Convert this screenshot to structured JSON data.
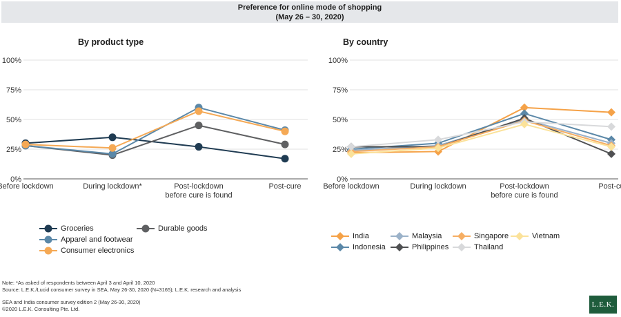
{
  "header": {
    "title": "Preference for online mode of shopping",
    "subtitle": "(May 26 – 30, 2020)"
  },
  "chart_data": [
    {
      "type": "line",
      "title": "By product type",
      "categories": [
        "Before lockdown",
        "During lockdown*",
        "Post-lockdown before cure is found",
        "Post-cure"
      ],
      "category_lines": [
        [
          "Before lockdown"
        ],
        [
          "During lockdown*"
        ],
        [
          "Post-lockdown",
          "before cure is found"
        ],
        [
          "Post-cure"
        ]
      ],
      "ylim": [
        0,
        100
      ],
      "yticks": [
        "0%",
        "25%",
        "50%",
        "75%",
        "100%"
      ],
      "series": [
        {
          "name": "Groceries",
          "color": "#1f3b52",
          "marker": "circle",
          "values": [
            30,
            35,
            27,
            17
          ]
        },
        {
          "name": "Durable goods",
          "color": "#5f6062",
          "marker": "circle",
          "values": [
            28,
            20,
            45,
            29
          ]
        },
        {
          "name": "Apparel and footwear",
          "color": "#5b88a8",
          "marker": "circle",
          "values": [
            28,
            21,
            60,
            41
          ]
        },
        {
          "name": "Consumer electronics",
          "color": "#f5a955",
          "marker": "circle",
          "values": [
            29,
            26,
            57,
            40
          ]
        }
      ]
    },
    {
      "type": "line",
      "title": "By country",
      "categories": [
        "Before lockdown",
        "During lockdown",
        "Post-lockdown before cure is found",
        "Post-cu"
      ],
      "category_lines": [
        [
          "Before lockdown"
        ],
        [
          "During lockdown"
        ],
        [
          "Post-lockdown",
          "before cure is found"
        ],
        [
          "Post-cu"
        ]
      ],
      "ylim": [
        0,
        100
      ],
      "yticks": [
        "0%",
        "25%",
        "50%",
        "75%",
        "100%"
      ],
      "series": [
        {
          "name": "India",
          "color": "#f5a248",
          "marker": "diamond",
          "values": [
            22,
            23,
            60,
            56
          ]
        },
        {
          "name": "Indonesia",
          "color": "#5b88a8",
          "marker": "diamond",
          "values": [
            25,
            30,
            55,
            33
          ]
        },
        {
          "name": "Malaysia",
          "color": "#9bb2c9",
          "marker": "diamond",
          "values": [
            24,
            28,
            50,
            30
          ]
        },
        {
          "name": "Philippines",
          "color": "#4f5052",
          "marker": "diamond",
          "values": [
            27,
            27,
            51,
            21
          ]
        },
        {
          "name": "Singapore",
          "color": "#f6ae63",
          "marker": "diamond",
          "values": [
            23,
            27,
            49,
            28
          ]
        },
        {
          "name": "Thailand",
          "color": "#d8d9db",
          "marker": "diamond",
          "values": [
            27,
            33,
            48,
            44
          ]
        },
        {
          "name": "Vietnam",
          "color": "#fbe29a",
          "marker": "diamond",
          "values": [
            21,
            26,
            46,
            27
          ]
        }
      ]
    }
  ],
  "footer": {
    "note": "Note:      *As asked of respondents between April 3 and April 10, 2020",
    "source": "Source:  L.E.K./Lucid consumer survey in SEA, May 26-30, 2020 (N=3165); L.E.K. research and analysis",
    "survey": "SEA and India consumer survey edition 2 (May 26-30, 2020)",
    "copyright": "©2020 L.E.K. Consulting Pte. Ltd.",
    "logo_text": "L.E.K."
  }
}
